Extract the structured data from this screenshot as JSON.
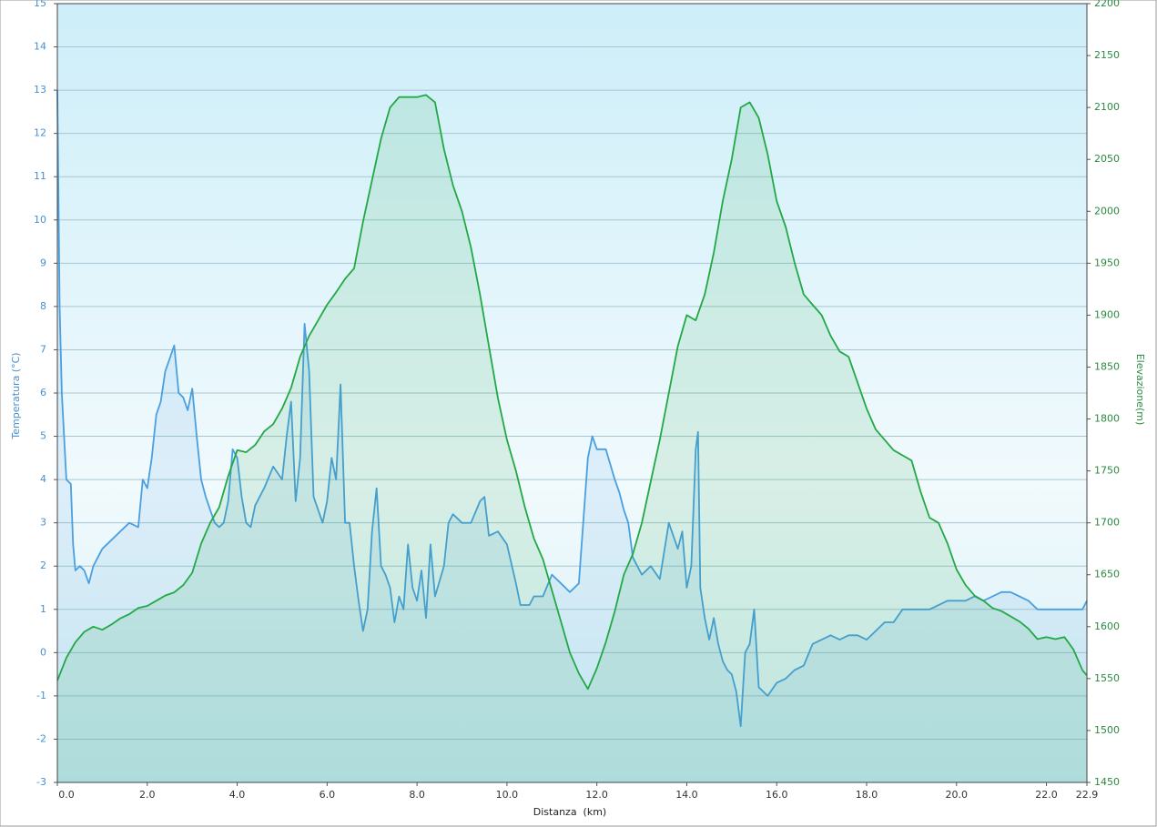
{
  "chart_data": {
    "type": "area",
    "x_label": "Distanza  (km)",
    "y_label": "Temperatura (°C)",
    "y2_label": "Elevazione(m)",
    "xlim": [
      0,
      22.9
    ],
    "xticks": [
      {
        "value": 0,
        "label": "0.0"
      },
      {
        "value": 2,
        "label": "2.0"
      },
      {
        "value": 4,
        "label": "4.0"
      },
      {
        "value": 6,
        "label": "6.0"
      },
      {
        "value": 8,
        "label": "8.0"
      },
      {
        "value": 10,
        "label": "10.0"
      },
      {
        "value": 12,
        "label": "12.0"
      },
      {
        "value": 14,
        "label": "14.0"
      },
      {
        "value": 16,
        "label": "16.0"
      },
      {
        "value": 18,
        "label": "18.0"
      },
      {
        "value": 20,
        "label": "20.0"
      },
      {
        "value": 22,
        "label": "22.0"
      },
      22.9
    ],
    "ylim": [
      -3,
      15
    ],
    "yticks": [
      -3,
      -2,
      -1,
      0,
      1,
      2,
      3,
      4,
      5,
      6,
      7,
      8,
      9,
      10,
      11,
      12,
      13,
      14,
      15
    ],
    "y2lim": [
      1450,
      2200
    ],
    "y2ticks": [
      1450,
      1500,
      1550,
      1600,
      1650,
      1700,
      1750,
      1800,
      1850,
      1900,
      1950,
      2000,
      2050,
      2100,
      2150,
      2200
    ],
    "grid": true,
    "series": [
      {
        "color": "#4a9fe0",
        "axis": "y",
        "x": [
          0,
          0.05,
          0.1,
          0.15,
          0.2,
          0.3,
          0.35,
          0.4,
          0.5,
          0.6,
          0.7,
          0.8,
          1.0,
          1.2,
          1.4,
          1.6,
          1.8,
          1.9,
          2.0,
          2.1,
          2.2,
          2.3,
          2.4,
          2.5,
          2.6,
          2.7,
          2.8,
          2.9,
          3.0,
          3.1,
          3.2,
          3.3,
          3.4,
          3.5,
          3.6,
          3.7,
          3.8,
          3.9,
          4.0,
          4.1,
          4.2,
          4.3,
          4.4,
          4.6,
          4.8,
          5.0,
          5.1,
          5.2,
          5.3,
          5.4,
          5.5,
          5.6,
          5.7,
          5.8,
          5.9,
          6.0,
          6.1,
          6.2,
          6.3,
          6.4,
          6.5,
          6.6,
          6.7,
          6.8,
          6.9,
          7.0,
          7.1,
          7.2,
          7.3,
          7.4,
          7.5,
          7.6,
          7.7,
          7.8,
          7.9,
          8.0,
          8.1,
          8.2,
          8.3,
          8.4,
          8.6,
          8.7,
          8.8,
          9.0,
          9.2,
          9.4,
          9.5,
          9.6,
          9.8,
          10.0,
          10.2,
          10.3,
          10.5,
          10.6,
          10.8,
          11.0,
          11.2,
          11.4,
          11.6,
          11.8,
          11.9,
          12.0,
          12.2,
          12.4,
          12.5,
          12.6,
          12.7,
          12.8,
          12.9,
          13.0,
          13.2,
          13.4,
          13.6,
          13.8,
          13.9,
          14.0,
          14.1,
          14.2,
          14.25,
          14.3,
          14.4,
          14.5,
          14.6,
          14.7,
          14.8,
          14.9,
          15.0,
          15.1,
          15.2,
          15.3,
          15.4,
          15.5,
          15.6,
          15.8,
          16.0,
          16.2,
          16.4,
          16.6,
          16.8,
          17.0,
          17.2,
          17.4,
          17.6,
          17.8,
          18.0,
          18.2,
          18.4,
          18.6,
          18.8,
          19.0,
          19.4,
          19.8,
          20.0,
          20.2,
          20.4,
          20.6,
          20.8,
          21.0,
          21.2,
          21.4,
          21.6,
          21.8,
          22.0,
          22.4,
          22.6,
          22.8,
          22.9
        ],
        "values": [
          13,
          8,
          6,
          5,
          4,
          3.9,
          2.5,
          1.9,
          2,
          1.9,
          1.6,
          2.0,
          2.4,
          2.6,
          2.8,
          3.0,
          2.9,
          4.0,
          3.8,
          4.5,
          5.5,
          5.8,
          6.5,
          6.8,
          7.1,
          6.0,
          5.9,
          5.6,
          6.1,
          5.0,
          4.0,
          3.6,
          3.3,
          3.0,
          2.9,
          3.0,
          3.5,
          4.7,
          4.5,
          3.6,
          3.0,
          2.9,
          3.4,
          3.8,
          4.3,
          4.0,
          5.0,
          5.8,
          3.5,
          4.5,
          7.6,
          6.5,
          3.6,
          3.3,
          3.0,
          3.5,
          4.5,
          4.0,
          6.2,
          3.0,
          3.0,
          2.0,
          1.2,
          0.5,
          1.0,
          2.8,
          3.8,
          2.0,
          1.8,
          1.5,
          0.7,
          1.3,
          1.0,
          2.5,
          1.5,
          1.2,
          1.9,
          0.8,
          2.5,
          1.3,
          2.0,
          3.0,
          3.2,
          3.0,
          3.0,
          3.5,
          3.6,
          2.7,
          2.8,
          2.5,
          1.6,
          1.1,
          1.1,
          1.3,
          1.3,
          1.8,
          1.6,
          1.4,
          1.6,
          4.5,
          5.0,
          4.7,
          4.7,
          4.0,
          3.7,
          3.3,
          3.0,
          2.2,
          2.0,
          1.8,
          2.0,
          1.7,
          3.0,
          2.4,
          2.8,
          1.5,
          2.0,
          4.7,
          5.1,
          1.5,
          0.8,
          0.3,
          0.8,
          0.2,
          -0.2,
          -0.4,
          -0.5,
          -0.9,
          -1.7,
          0,
          0.2,
          1.0,
          -0.8,
          -1.0,
          -0.7,
          -0.6,
          -0.4,
          -0.3,
          0.2,
          0.3,
          0.4,
          0.3,
          0.4,
          0.4,
          0.3,
          0.5,
          0.7,
          0.7,
          1.0,
          1.0,
          1.0,
          1.2,
          1.2,
          1.2,
          1.3,
          1.2,
          1.3,
          1.4,
          1.4,
          1.3,
          1.2,
          1.0,
          1.0,
          1.0,
          1.0,
          1.0,
          1.2
        ]
      },
      {
        "color": "#22a844",
        "axis": "y2",
        "x": [
          0,
          0.2,
          0.4,
          0.6,
          0.8,
          1.0,
          1.2,
          1.4,
          1.6,
          1.8,
          2.0,
          2.2,
          2.4,
          2.6,
          2.8,
          3.0,
          3.2,
          3.4,
          3.6,
          3.8,
          4.0,
          4.2,
          4.4,
          4.6,
          4.8,
          5.0,
          5.2,
          5.4,
          5.6,
          5.8,
          6.0,
          6.2,
          6.4,
          6.6,
          6.8,
          7.0,
          7.2,
          7.4,
          7.6,
          7.8,
          8.0,
          8.2,
          8.4,
          8.6,
          8.8,
          9.0,
          9.2,
          9.4,
          9.6,
          9.8,
          10.0,
          10.2,
          10.4,
          10.6,
          10.8,
          11.0,
          11.2,
          11.4,
          11.6,
          11.8,
          12.0,
          12.2,
          12.4,
          12.6,
          12.8,
          13.0,
          13.2,
          13.4,
          13.6,
          13.8,
          14.0,
          14.2,
          14.4,
          14.6,
          14.8,
          15.0,
          15.2,
          15.4,
          15.6,
          15.8,
          16.0,
          16.2,
          16.4,
          16.6,
          16.8,
          17.0,
          17.2,
          17.4,
          17.6,
          17.8,
          18.0,
          18.2,
          18.4,
          18.6,
          18.8,
          19.0,
          19.2,
          19.4,
          19.6,
          19.8,
          20.0,
          20.2,
          20.4,
          20.6,
          20.8,
          21.0,
          21.2,
          21.4,
          21.6,
          21.8,
          22.0,
          22.2,
          22.4,
          22.6,
          22.8,
          22.9
        ],
        "values": [
          1548,
          1570,
          1585,
          1595,
          1600,
          1597,
          1602,
          1608,
          1612,
          1618,
          1620,
          1625,
          1630,
          1633,
          1640,
          1652,
          1680,
          1700,
          1715,
          1745,
          1770,
          1768,
          1775,
          1788,
          1795,
          1810,
          1830,
          1860,
          1880,
          1895,
          1910,
          1922,
          1935,
          1945,
          1990,
          2030,
          2070,
          2100,
          2110,
          2110,
          2110,
          2112,
          2105,
          2060,
          2025,
          2000,
          1965,
          1920,
          1870,
          1820,
          1780,
          1750,
          1715,
          1685,
          1665,
          1635,
          1605,
          1575,
          1555,
          1540,
          1560,
          1585,
          1615,
          1650,
          1670,
          1700,
          1740,
          1780,
          1825,
          1870,
          1900,
          1895,
          1920,
          1960,
          2010,
          2050,
          2100,
          2105,
          2090,
          2055,
          2010,
          1985,
          1950,
          1920,
          1910,
          1900,
          1880,
          1865,
          1860,
          1835,
          1810,
          1790,
          1780,
          1770,
          1765,
          1760,
          1730,
          1705,
          1700,
          1680,
          1655,
          1640,
          1630,
          1625,
          1618,
          1615,
          1610,
          1605,
          1598,
          1588,
          1590,
          1588,
          1590,
          1578,
          1558,
          1553
        ]
      }
    ]
  }
}
